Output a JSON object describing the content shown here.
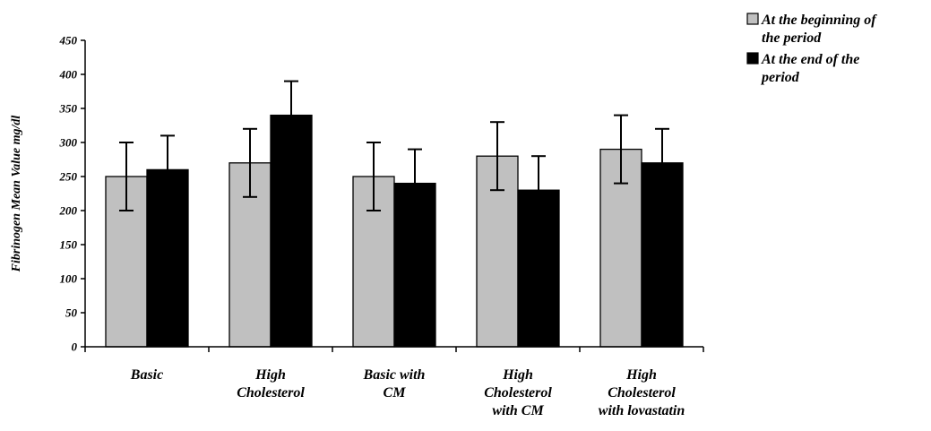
{
  "chart_data": {
    "type": "bar",
    "title": "",
    "xlabel": "",
    "ylabel": "Fibrinogen Mean Value mg/dl",
    "ylim": [
      0,
      450
    ],
    "yticks": [
      0,
      50,
      100,
      150,
      200,
      250,
      300,
      350,
      400,
      450
    ],
    "grid": false,
    "legend_position": "top-right",
    "categories": [
      [
        "Basic"
      ],
      [
        "High",
        "Cholesterol"
      ],
      [
        "Basic with",
        "CM"
      ],
      [
        "High",
        "Cholesterol",
        "with CM"
      ],
      [
        "High",
        "Cholesterol",
        "with lovastatin"
      ]
    ],
    "series": [
      {
        "name": "At the beginning of the period",
        "legend_lines": [
          "At the beginning of",
          "the period"
        ],
        "color": "#c0c0c0",
        "values": [
          250,
          270,
          250,
          280,
          290
        ],
        "errors": [
          50,
          50,
          50,
          50,
          50
        ]
      },
      {
        "name": "At the end of the period",
        "legend_lines": [
          "At the end of the",
          "period"
        ],
        "color": "#000000",
        "values": [
          260,
          340,
          240,
          230,
          270
        ],
        "errors": [
          50,
          50,
          50,
          50,
          50
        ]
      }
    ]
  }
}
